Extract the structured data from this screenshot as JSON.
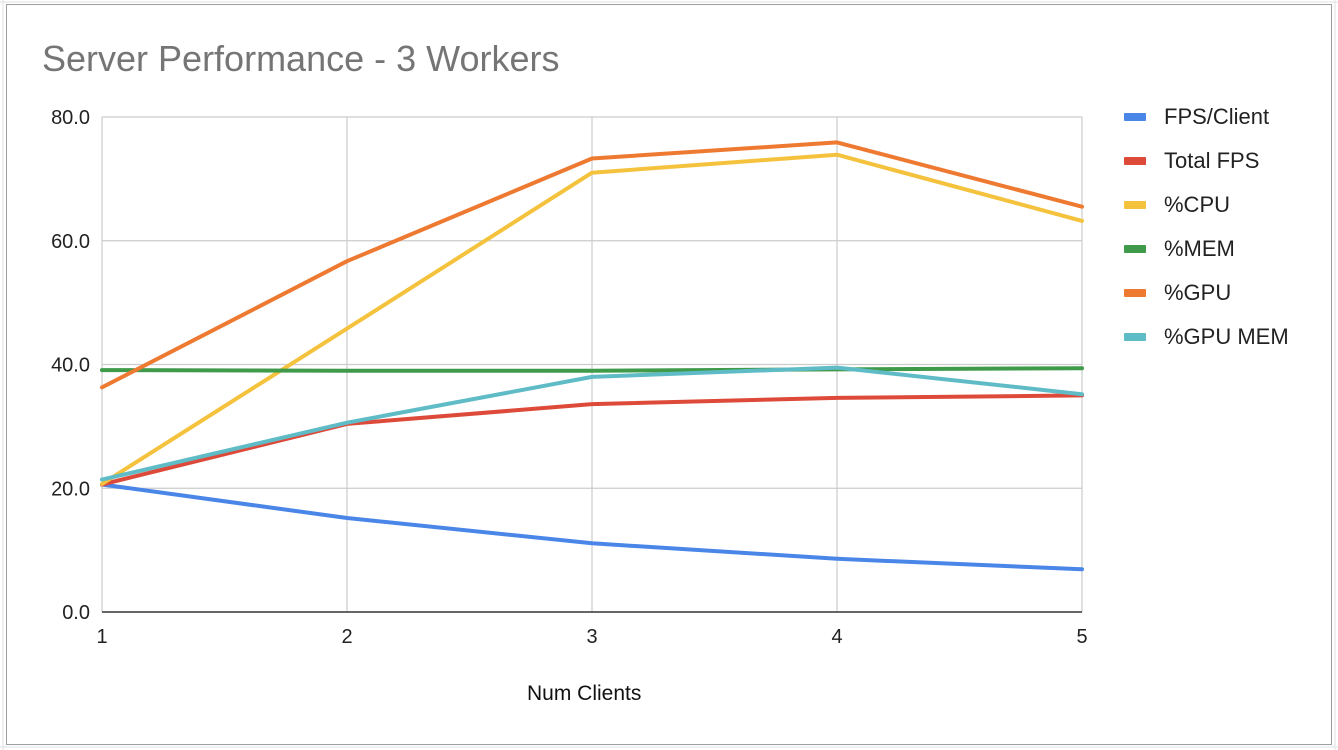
{
  "chart_data": {
    "type": "line",
    "title": "Server Performance - 3 Workers",
    "xlabel": "Num Clients",
    "ylabel": "",
    "x": [
      1,
      2,
      3,
      4,
      5
    ],
    "x_tick_labels": [
      "1",
      "2",
      "3",
      "4",
      "5"
    ],
    "ylim": [
      0,
      80
    ],
    "y_ticks": [
      0,
      20,
      40,
      60,
      80
    ],
    "y_tick_labels": [
      "0.0",
      "20.0",
      "40.0",
      "60.0",
      "80.0"
    ],
    "grid": true,
    "legend_position": "right",
    "series": [
      {
        "name": "FPS/Client",
        "color": "#4a86e8",
        "values": [
          20.6,
          15.2,
          11.1,
          8.6,
          6.9
        ]
      },
      {
        "name": "Total FPS",
        "color": "#dd4a3a",
        "values": [
          20.6,
          30.4,
          33.6,
          34.6,
          35.0
        ]
      },
      {
        "name": "%CPU",
        "color": "#f4c23d",
        "values": [
          20.7,
          45.8,
          71.0,
          73.9,
          63.2
        ]
      },
      {
        "name": "%MEM",
        "color": "#3f9a4a",
        "values": [
          39.1,
          39.0,
          39.0,
          39.2,
          39.4
        ]
      },
      {
        "name": "%GPU",
        "color": "#ee7a32",
        "values": [
          36.3,
          56.7,
          73.3,
          75.9,
          65.5
        ]
      },
      {
        "name": "%GPU MEM",
        "color": "#5fbcc6",
        "values": [
          21.4,
          30.6,
          38.0,
          39.5,
          35.2
        ]
      }
    ]
  }
}
